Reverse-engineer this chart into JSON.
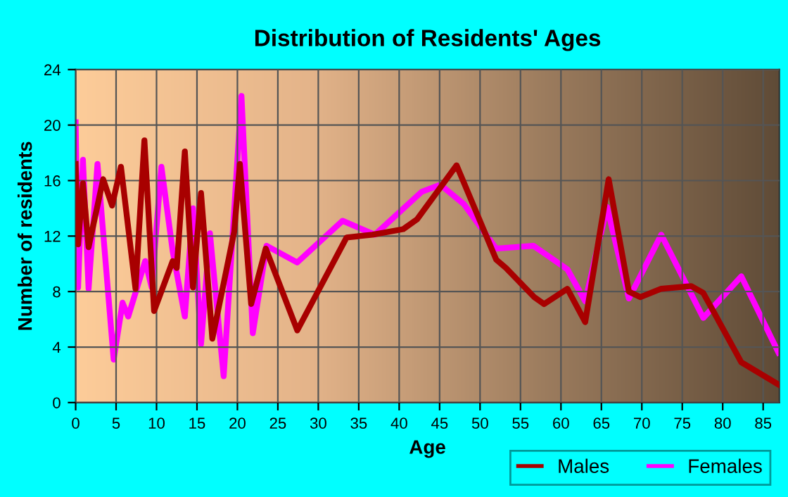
{
  "chart_data": {
    "type": "line",
    "title": "Distribution of Residents' Ages",
    "xlabel": "Age",
    "ylabel": "Number of residents",
    "xlim": [
      0,
      87
    ],
    "ylim": [
      0,
      24
    ],
    "xticks": [
      0,
      5,
      10,
      15,
      20,
      25,
      30,
      35,
      40,
      45,
      50,
      55,
      60,
      65,
      70,
      75,
      80,
      85
    ],
    "yticks": [
      0,
      4,
      8,
      12,
      16,
      20,
      24
    ],
    "grid": true,
    "legend": "bottom right",
    "marker": "none",
    "line_style": "solid",
    "series": [
      {
        "name": "Males",
        "color": "#a80000",
        "x": [
          0,
          0.3,
          0.9,
          1.6,
          3.4,
          4.5,
          5.6,
          7.4,
          8.5,
          9.7,
          12.0,
          12.5,
          13.5,
          14.5,
          15.5,
          16.9,
          19.6,
          20.3,
          21.7,
          23.5,
          27.4,
          33.5,
          36.7,
          40.5,
          42.2,
          47.1,
          52.0,
          53.2,
          56.7,
          57.9,
          60.8,
          63.0,
          65.9,
          68.4,
          69.8,
          72.4,
          76.1,
          77.6,
          82.3,
          86.9
        ],
        "values": [
          17.2,
          11.4,
          15.8,
          11.2,
          16.1,
          14.2,
          17.0,
          8.2,
          18.9,
          6.6,
          10.2,
          9.7,
          18.1,
          8.3,
          15.1,
          4.6,
          12.3,
          17.2,
          7.1,
          11.1,
          5.2,
          11.9,
          12.1,
          12.5,
          13.2,
          17.1,
          10.3,
          9.7,
          7.6,
          7.1,
          8.2,
          5.8,
          16.1,
          8.0,
          7.6,
          8.2,
          8.4,
          7.9,
          2.9,
          1.3
        ]
      },
      {
        "name": "Females",
        "color": "#ff00ff",
        "x": [
          0,
          0.3,
          0.9,
          1.6,
          2.7,
          4.7,
          5.8,
          6.5,
          8.6,
          9.4,
          10.6,
          12.0,
          13.5,
          14.5,
          15.5,
          16.6,
          18.3,
          20.5,
          21.9,
          23.6,
          27.4,
          33.0,
          37.0,
          42.8,
          45.1,
          48.0,
          52.0,
          56.6,
          60.8,
          63.0,
          65.7,
          68.4,
          72.4,
          77.6,
          82.3,
          86.9
        ],
        "values": [
          20.2,
          8.3,
          17.5,
          8.2,
          17.2,
          3.1,
          7.2,
          6.2,
          10.2,
          8.3,
          17.0,
          10.9,
          6.2,
          14.0,
          4.2,
          12.2,
          1.9,
          22.1,
          5.0,
          11.3,
          10.1,
          13.1,
          12.1,
          15.2,
          15.7,
          14.3,
          11.1,
          11.3,
          9.6,
          7.3,
          14.1,
          7.5,
          12.1,
          6.1,
          9.1,
          3.6
        ]
      }
    ]
  }
}
